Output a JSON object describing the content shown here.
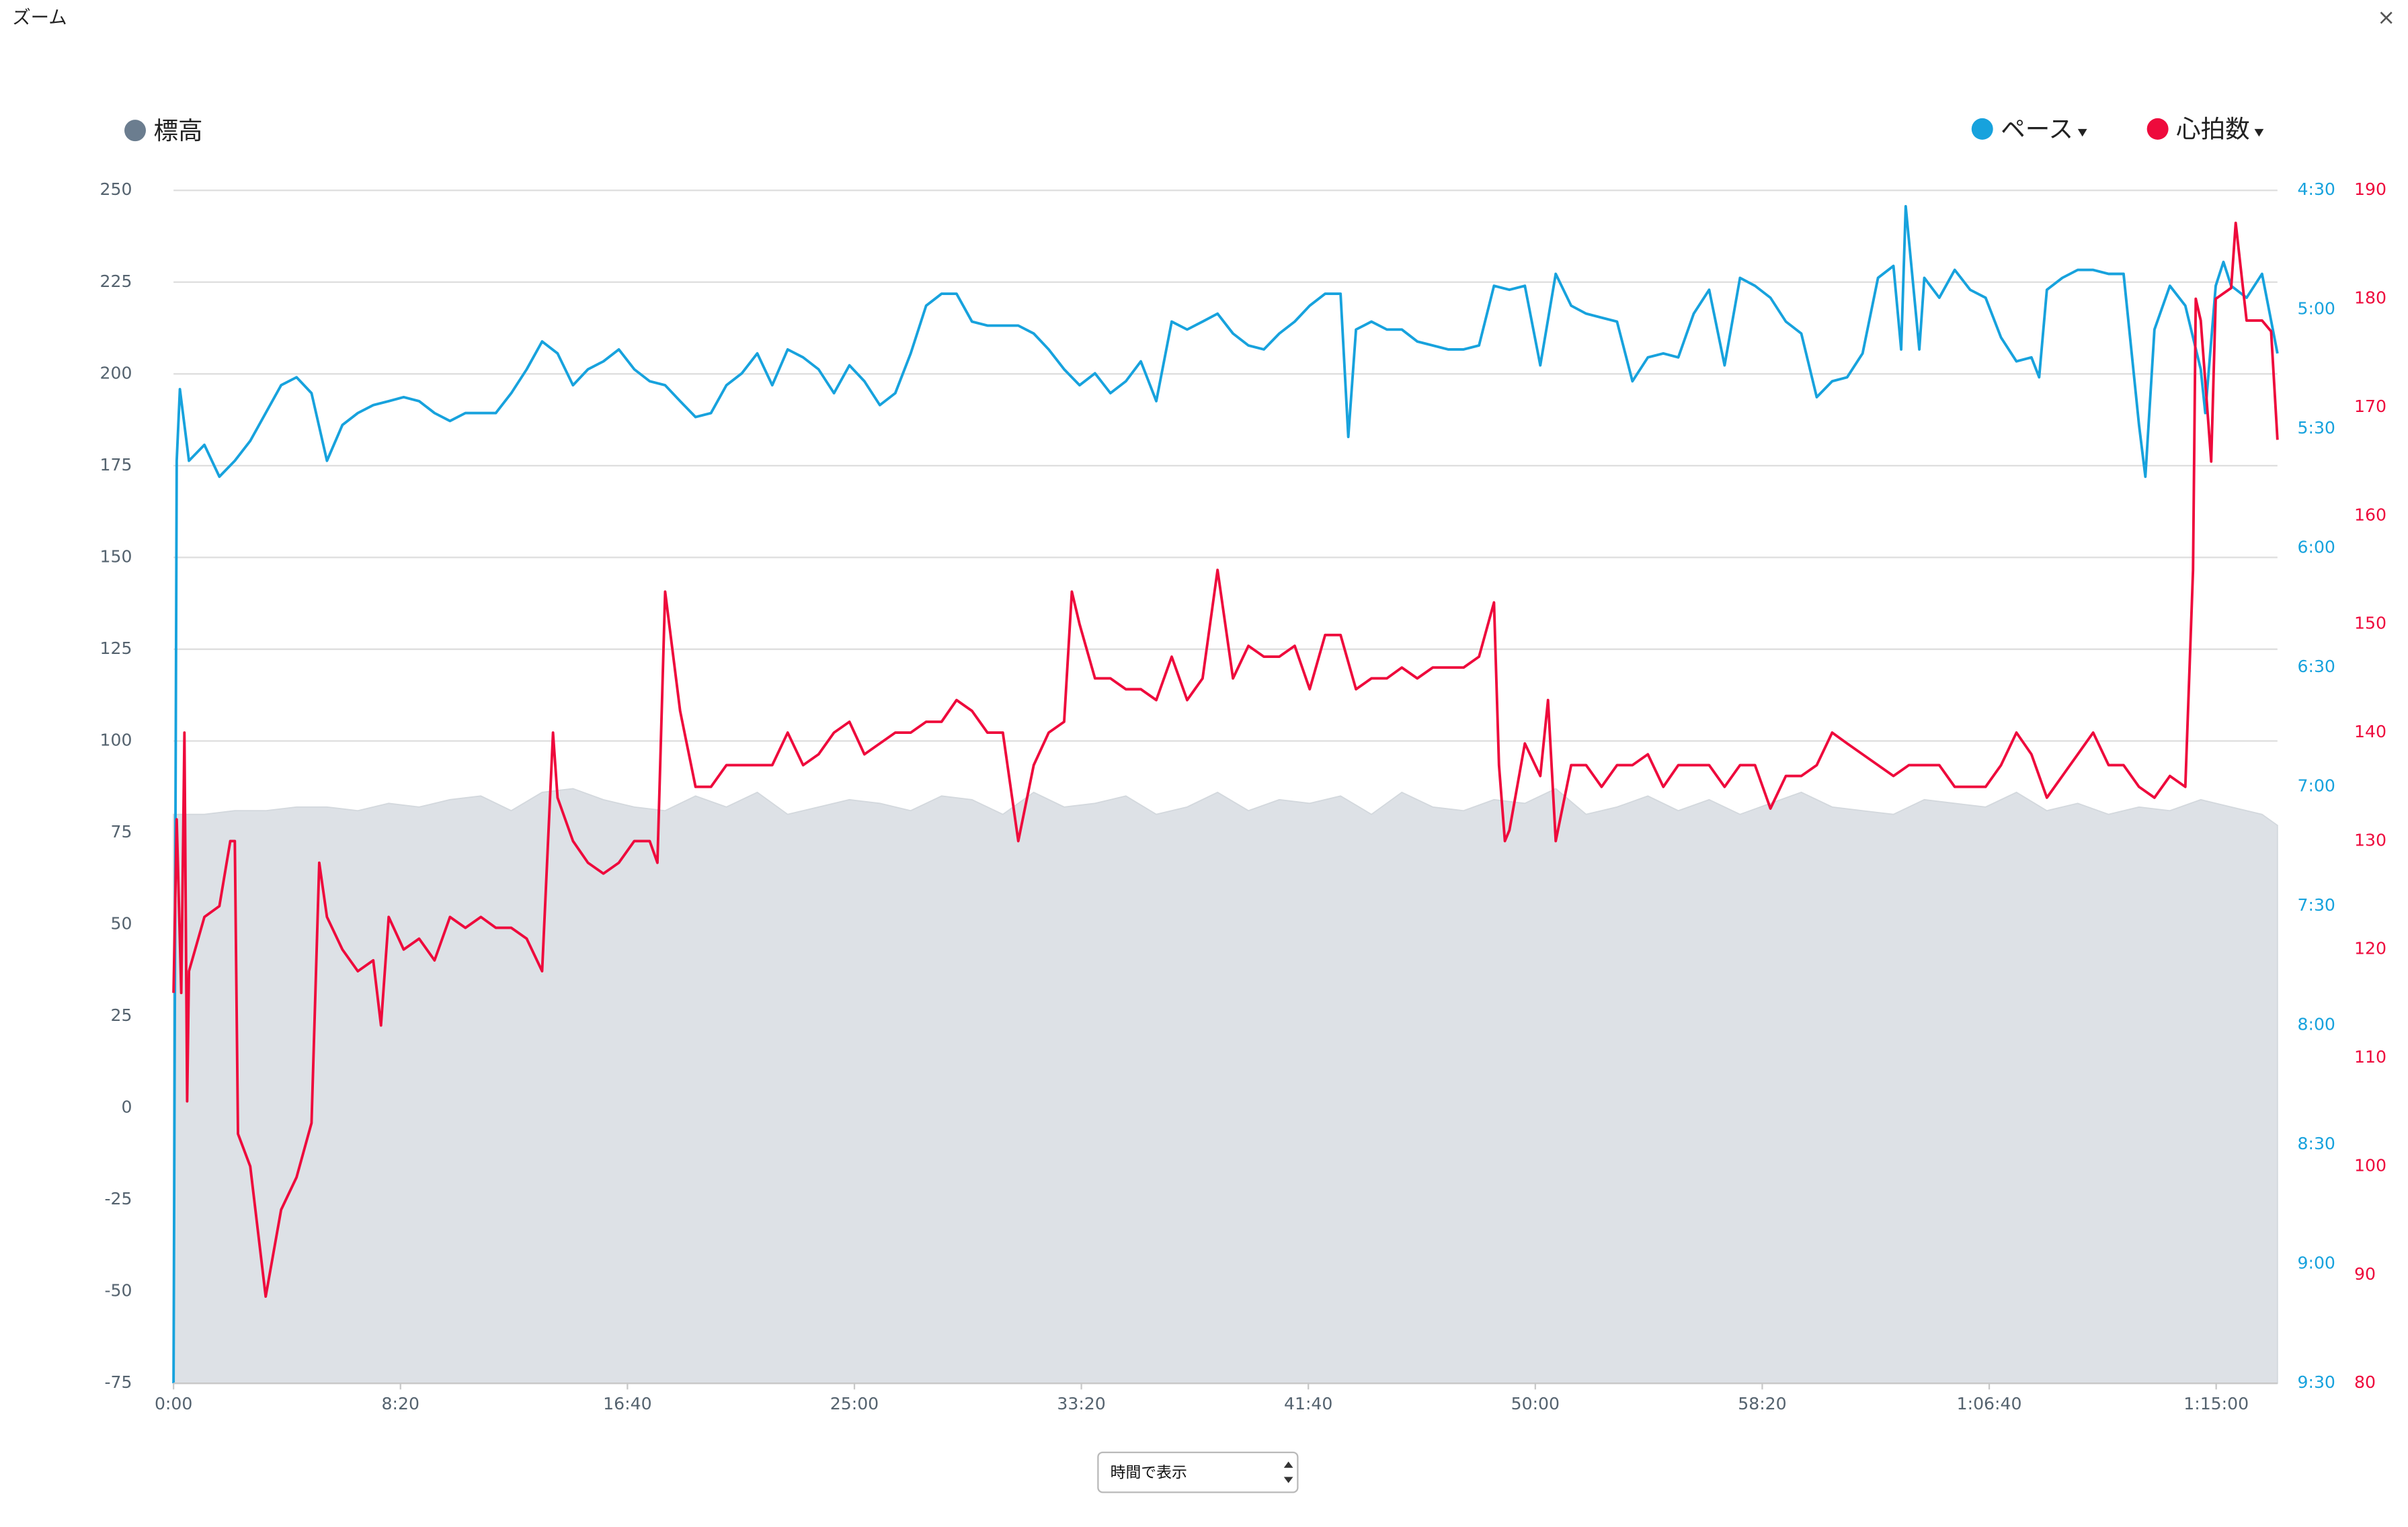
{
  "window": {
    "title": "ズーム",
    "close": "×"
  },
  "chart_data": {
    "type": "line",
    "legend": "top",
    "grid": true,
    "xlim": [
      0,
      4635
    ],
    "xticks": [
      {
        "value": 0,
        "label": "0:00"
      },
      {
        "value": 500,
        "label": "8:20"
      },
      {
        "value": 1000,
        "label": "16:40"
      },
      {
        "value": 1500,
        "label": "25:00"
      },
      {
        "value": 2000,
        "label": "33:20"
      },
      {
        "value": 2500,
        "label": "41:40"
      },
      {
        "value": 3000,
        "label": "50:00"
      },
      {
        "value": 3500,
        "label": "58:20"
      },
      {
        "value": 4000,
        "label": "1:06:40"
      },
      {
        "value": 4500,
        "label": "1:15:00"
      }
    ],
    "ylim": [
      -75,
      250
    ],
    "yticks": [
      -75,
      -50,
      -25,
      0,
      25,
      50,
      75,
      100,
      125,
      150,
      175,
      200,
      225,
      250
    ],
    "y2lim": [
      570,
      270
    ],
    "y2ticks": [
      {
        "value": 270,
        "label": "4:30"
      },
      {
        "value": 300,
        "label": "5:00"
      },
      {
        "value": 330,
        "label": "5:30"
      },
      {
        "value": 360,
        "label": "6:00"
      },
      {
        "value": 390,
        "label": "6:30"
      },
      {
        "value": 420,
        "label": "7:00"
      },
      {
        "value": 450,
        "label": "7:30"
      },
      {
        "value": 480,
        "label": "8:00"
      },
      {
        "value": 510,
        "label": "8:30"
      },
      {
        "value": 540,
        "label": "9:00"
      },
      {
        "value": 570,
        "label": "9:30"
      }
    ],
    "y3lim": [
      80,
      190
    ],
    "y3ticks": [
      80,
      90,
      100,
      110,
      120,
      130,
      140,
      150,
      160,
      170,
      180,
      190
    ],
    "series": [
      {
        "name": "標高",
        "type": "area",
        "axis": "y",
        "color": "#dde1e6",
        "legend_color": "#6b7d8f",
        "x": [
          0,
          68,
          135,
          203,
          271,
          338,
          406,
          474,
          541,
          609,
          677,
          744,
          812,
          880,
          947,
          1015,
          1083,
          1150,
          1218,
          1286,
          1353,
          1421,
          1489,
          1556,
          1624,
          1692,
          1759,
          1827,
          1895,
          1962,
          2030,
          2098,
          2165,
          2233,
          2300,
          2368,
          2436,
          2503,
          2571,
          2639,
          2706,
          2774,
          2842,
          2909,
          2977,
          3045,
          3112,
          3180,
          3248,
          3315,
          3383,
          3451,
          3518,
          3586,
          3654,
          3721,
          3789,
          3857,
          3924,
          3992,
          4060,
          4127,
          4195,
          4263,
          4330,
          4398,
          4466,
          4533,
          4601,
          4635
        ],
        "values": [
          80,
          80,
          81,
          81,
          82,
          82,
          81,
          83,
          82,
          84,
          85,
          81,
          86,
          87,
          84,
          82,
          81,
          85,
          82,
          86,
          80,
          82,
          84,
          83,
          81,
          85,
          84,
          80,
          86,
          82,
          83,
          85,
          80,
          82,
          86,
          81,
          84,
          83,
          85,
          80,
          86,
          82,
          81,
          84,
          83,
          87,
          80,
          82,
          85,
          81,
          84,
          80,
          83,
          86,
          82,
          81,
          80,
          84,
          83,
          82,
          86,
          81,
          83,
          80,
          82,
          81,
          84,
          82,
          80,
          77
        ]
      },
      {
        "name": "ペース",
        "type": "line",
        "axis": "y2",
        "color": "#17a2dd",
        "x": [
          0,
          7,
          14,
          34,
          68,
          101,
          135,
          169,
          203,
          237,
          271,
          304,
          338,
          372,
          406,
          440,
          474,
          507,
          541,
          575,
          609,
          643,
          677,
          710,
          744,
          778,
          812,
          846,
          880,
          913,
          947,
          981,
          1015,
          1049,
          1083,
          1116,
          1150,
          1184,
          1218,
          1252,
          1286,
          1319,
          1353,
          1387,
          1421,
          1455,
          1489,
          1522,
          1556,
          1590,
          1624,
          1658,
          1692,
          1725,
          1759,
          1793,
          1827,
          1861,
          1895,
          1928,
          1962,
          1996,
          2030,
          2064,
          2098,
          2131,
          2165,
          2199,
          2233,
          2267,
          2300,
          2334,
          2368,
          2402,
          2436,
          2470,
          2503,
          2537,
          2571,
          2588,
          2605,
          2639,
          2673,
          2706,
          2740,
          2774,
          2808,
          2842,
          2876,
          2909,
          2943,
          2977,
          3011,
          3045,
          3079,
          3112,
          3146,
          3180,
          3214,
          3248,
          3282,
          3315,
          3349,
          3383,
          3417,
          3451,
          3484,
          3518,
          3552,
          3586,
          3620,
          3654,
          3687,
          3721,
          3755,
          3789,
          3806,
          3816,
          3846,
          3857,
          3890,
          3924,
          3958,
          3992,
          4026,
          4060,
          4093,
          4110,
          4127,
          4161,
          4195,
          4229,
          4263,
          4296,
          4330,
          4344,
          4364,
          4398,
          4432,
          4466,
          4476,
          4499,
          4516,
          4533,
          4567,
          4601,
          4635
        ],
        "values": [
          570,
          338,
          320,
          338,
          334,
          342,
          338,
          333,
          326,
          319,
          317,
          321,
          338,
          329,
          326,
          324,
          323,
          322,
          323,
          326,
          328,
          326,
          326,
          326,
          321,
          315,
          308,
          311,
          319,
          315,
          313,
          310,
          315,
          318,
          319,
          323,
          327,
          326,
          319,
          316,
          311,
          319,
          310,
          312,
          315,
          321,
          314,
          318,
          324,
          321,
          311,
          299,
          296,
          296,
          303,
          304,
          304,
          304,
          306,
          310,
          315,
          319,
          316,
          321,
          318,
          313,
          323,
          303,
          305,
          303,
          301,
          306,
          309,
          310,
          306,
          303,
          299,
          296,
          296,
          332,
          305,
          303,
          305,
          305,
          308,
          309,
          310,
          310,
          309,
          294,
          295,
          294,
          314,
          291,
          299,
          301,
          302,
          303,
          318,
          312,
          311,
          312,
          301,
          295,
          314,
          292,
          294,
          297,
          303,
          306,
          322,
          318,
          317,
          311,
          292,
          289,
          310,
          274,
          310,
          292,
          297,
          290,
          295,
          297,
          307,
          313,
          312,
          317,
          295,
          292,
          290,
          290,
          291,
          291,
          329,
          342,
          305,
          294,
          299,
          315,
          326,
          294,
          288,
          294,
          297,
          291,
          311
        ]
      },
      {
        "name": "心拍数",
        "type": "line",
        "axis": "y3",
        "color": "#ee0a3c",
        "x": [
          0,
          7,
          17,
          24,
          30,
          34,
          68,
          101,
          125,
          135,
          142,
          169,
          203,
          237,
          271,
          304,
          321,
          338,
          372,
          406,
          440,
          457,
          474,
          507,
          541,
          575,
          609,
          643,
          677,
          710,
          744,
          778,
          812,
          836,
          846,
          880,
          913,
          947,
          981,
          1015,
          1049,
          1066,
          1083,
          1116,
          1150,
          1184,
          1218,
          1252,
          1286,
          1319,
          1353,
          1387,
          1421,
          1455,
          1489,
          1522,
          1556,
          1590,
          1624,
          1658,
          1692,
          1725,
          1759,
          1793,
          1827,
          1861,
          1895,
          1928,
          1962,
          1979,
          1996,
          2030,
          2064,
          2098,
          2131,
          2165,
          2199,
          2233,
          2267,
          2300,
          2334,
          2368,
          2402,
          2436,
          2470,
          2503,
          2537,
          2571,
          2605,
          2639,
          2673,
          2706,
          2740,
          2774,
          2808,
          2842,
          2876,
          2909,
          2920,
          2933,
          2943,
          2977,
          3011,
          3028,
          3045,
          3079,
          3112,
          3146,
          3180,
          3214,
          3248,
          3282,
          3315,
          3349,
          3383,
          3417,
          3451,
          3484,
          3518,
          3552,
          3586,
          3620,
          3654,
          3687,
          3721,
          3755,
          3789,
          3823,
          3857,
          3890,
          3924,
          3958,
          3992,
          4026,
          4060,
          4093,
          4127,
          4161,
          4195,
          4229,
          4263,
          4296,
          4330,
          4364,
          4398,
          4432,
          4449,
          4455,
          4466,
          4489,
          4499,
          4533,
          4543,
          4567,
          4601,
          4621,
          4635
        ],
        "values": [
          116,
          132,
          116,
          140,
          106,
          118,
          123,
          124,
          130,
          130,
          103,
          100,
          88,
          96,
          99,
          104,
          128,
          123,
          120,
          118,
          119,
          113,
          123,
          120,
          121,
          119,
          123,
          122,
          123,
          122,
          122,
          121,
          118,
          140,
          134,
          130,
          128,
          127,
          128,
          130,
          130,
          128,
          153,
          142,
          135,
          135,
          137,
          137,
          137,
          137,
          140,
          137,
          138,
          140,
          141,
          138,
          139,
          140,
          140,
          141,
          141,
          143,
          142,
          140,
          140,
          130,
          137,
          140,
          141,
          153,
          150,
          145,
          145,
          144,
          144,
          143,
          147,
          143,
          145,
          155,
          145,
          148,
          147,
          147,
          148,
          144,
          149,
          149,
          144,
          145,
          145,
          146,
          145,
          146,
          146,
          146,
          147,
          152,
          137,
          130,
          131,
          139,
          136,
          143,
          130,
          137,
          137,
          135,
          137,
          137,
          138,
          135,
          137,
          137,
          137,
          135,
          137,
          137,
          133,
          136,
          136,
          137,
          140,
          139,
          138,
          137,
          136,
          137,
          137,
          137,
          135,
          135,
          135,
          137,
          140,
          138,
          134,
          136,
          138,
          140,
          137,
          137,
          135,
          134,
          136,
          135,
          155,
          180,
          178,
          165,
          180,
          181,
          187,
          178,
          178,
          177,
          167
        ]
      }
    ]
  },
  "controls": {
    "display_mode": "時間で表示"
  }
}
